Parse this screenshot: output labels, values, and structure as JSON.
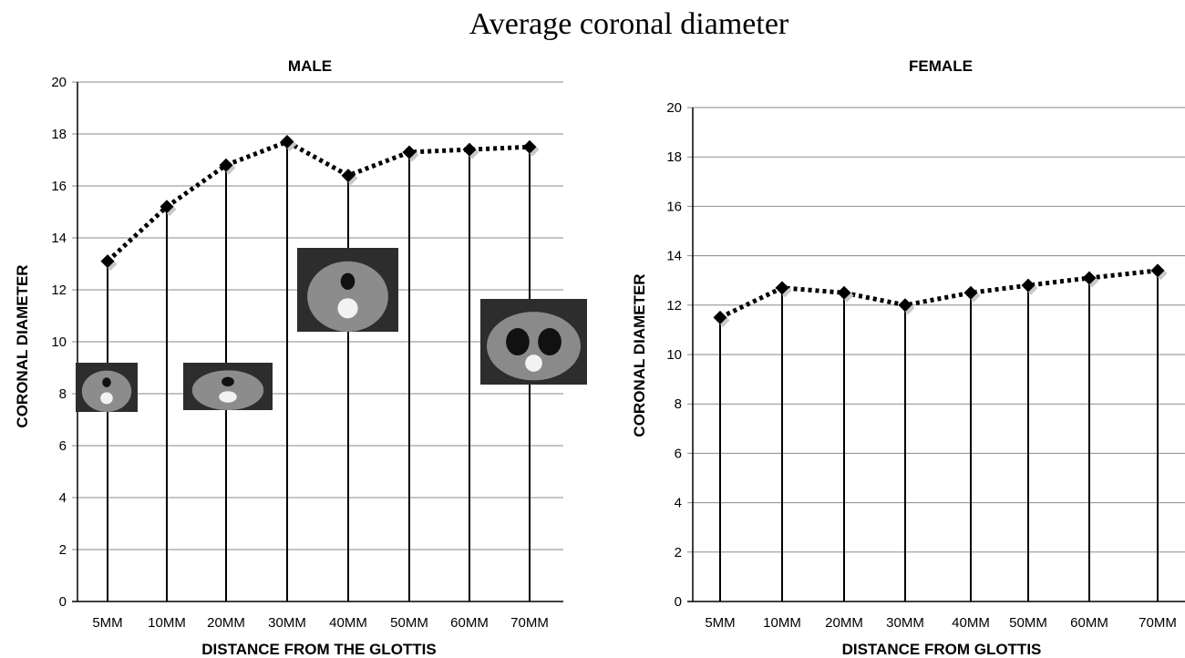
{
  "figure_title": "Average coronal diameter",
  "chart_data": [
    {
      "type": "line",
      "title": "MALE",
      "xlabel": "DISTANCE FROM THE GLOTTIS",
      "ylabel": "CORONAL  DIAMETER",
      "categories": [
        "5MM",
        "10MM",
        "20MM",
        "30MM",
        "40MM",
        "50MM",
        "60MM",
        "70MM"
      ],
      "series": [
        {
          "values": [
            13.1,
            15.2,
            16.8,
            17.7,
            16.4,
            17.3,
            17.4,
            17.5
          ]
        }
      ],
      "ylim": [
        0,
        20
      ],
      "yticks": [
        0,
        2,
        4,
        6,
        8,
        10,
        12,
        14,
        16,
        18,
        20
      ],
      "grid": true,
      "drop_lines": true,
      "insets": "axial CT slice thumbnails at 5MM, 20MM, 40MM, 70MM"
    },
    {
      "type": "line",
      "title": "FEMALE",
      "xlabel": "DISTANCE FROM GLOTTIS",
      "ylabel": "CORONAL  DIAMETER",
      "categories": [
        "5MM",
        "10MM",
        "20MM",
        "30MM",
        "40MM",
        "50MM",
        "60MM",
        "70MM"
      ],
      "series": [
        {
          "values": [
            11.5,
            12.7,
            12.5,
            12.0,
            12.5,
            12.8,
            13.1,
            13.4
          ]
        }
      ],
      "ylim": [
        0,
        20
      ],
      "yticks": [
        0,
        2,
        4,
        6,
        8,
        10,
        12,
        14,
        16,
        18,
        20
      ],
      "grid": true,
      "drop_lines": true
    }
  ]
}
